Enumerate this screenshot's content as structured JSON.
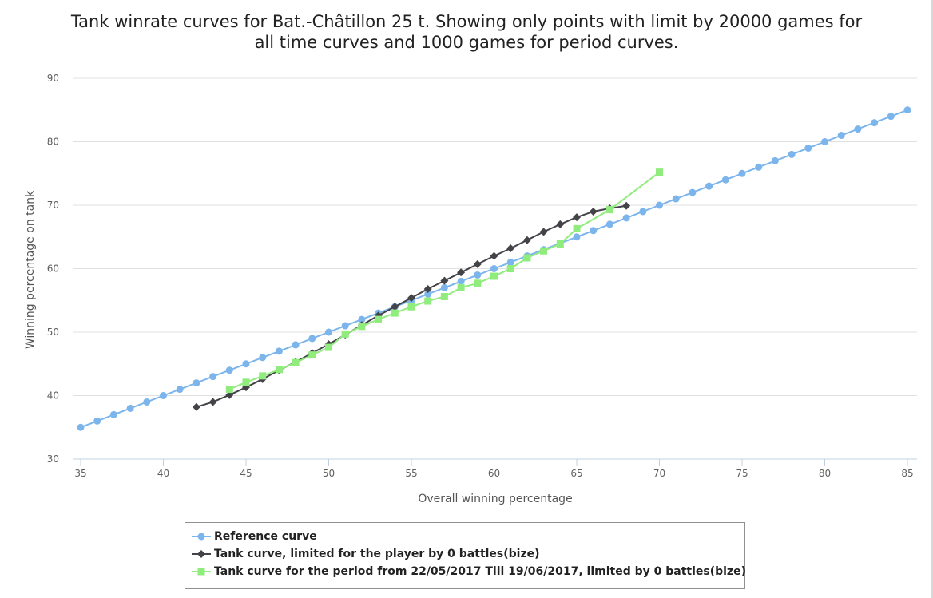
{
  "chart_data": {
    "type": "line",
    "title_line1": "Tank winrate curves for Bat.-Châtillon 25 t. Showing only points with limit by 20000 games for",
    "title_line2": "all time curves and 1000 games for period curves.",
    "xlabel": "Overall winning percentage",
    "ylabel": "Winning percentage on tank",
    "xlim": [
      34,
      86
    ],
    "ylim": [
      30,
      90
    ],
    "xticks": [
      35,
      40,
      45,
      50,
      55,
      60,
      65,
      70,
      75,
      80,
      85
    ],
    "yticks": [
      30,
      40,
      50,
      60,
      70,
      80,
      90
    ],
    "grid": "horizontal",
    "legend_position": "bottom",
    "series": [
      {
        "name": "Reference curve",
        "color": "#7cb5ec",
        "marker": "circle",
        "points": [
          [
            35,
            35
          ],
          [
            36,
            36
          ],
          [
            37,
            37
          ],
          [
            38,
            38
          ],
          [
            39,
            39
          ],
          [
            40,
            40
          ],
          [
            41,
            41
          ],
          [
            42,
            42
          ],
          [
            43,
            43
          ],
          [
            44,
            44
          ],
          [
            45,
            45
          ],
          [
            46,
            46
          ],
          [
            47,
            47
          ],
          [
            48,
            48
          ],
          [
            49,
            49
          ],
          [
            50,
            50
          ],
          [
            51,
            51
          ],
          [
            52,
            52
          ],
          [
            53,
            53
          ],
          [
            54,
            54
          ],
          [
            55,
            55
          ],
          [
            56,
            56
          ],
          [
            57,
            57
          ],
          [
            58,
            58
          ],
          [
            59,
            59
          ],
          [
            60,
            60
          ],
          [
            61,
            61
          ],
          [
            62,
            62
          ],
          [
            63,
            63
          ],
          [
            64,
            64
          ],
          [
            65,
            65
          ],
          [
            66,
            66
          ],
          [
            67,
            67
          ],
          [
            68,
            68
          ],
          [
            69,
            69
          ],
          [
            70,
            70
          ],
          [
            71,
            71
          ],
          [
            72,
            72
          ],
          [
            73,
            73
          ],
          [
            74,
            74
          ],
          [
            75,
            75
          ],
          [
            76,
            76
          ],
          [
            77,
            77
          ],
          [
            78,
            78
          ],
          [
            79,
            79
          ],
          [
            80,
            80
          ],
          [
            81,
            81
          ],
          [
            82,
            82
          ],
          [
            83,
            83
          ],
          [
            84,
            84
          ],
          [
            85,
            85
          ]
        ]
      },
      {
        "name": "Tank curve, limited for the player by 0 battles(bize)",
        "color": "#434348",
        "marker": "diamond",
        "points": [
          [
            42,
            38.2
          ],
          [
            43,
            39
          ],
          [
            44,
            40.1
          ],
          [
            45,
            41.3
          ],
          [
            46,
            42.6
          ],
          [
            47,
            44
          ],
          [
            48,
            45.3
          ],
          [
            49,
            46.7
          ],
          [
            50,
            48.1
          ],
          [
            51,
            49.6
          ],
          [
            52,
            51.1
          ],
          [
            53,
            52.6
          ],
          [
            54,
            54
          ],
          [
            55,
            55.4
          ],
          [
            56,
            56.8
          ],
          [
            57,
            58.1
          ],
          [
            58,
            59.4
          ],
          [
            59,
            60.7
          ],
          [
            60,
            62
          ],
          [
            61,
            63.2
          ],
          [
            62,
            64.5
          ],
          [
            63,
            65.8
          ],
          [
            64,
            67
          ],
          [
            65,
            68.1
          ],
          [
            66,
            69
          ],
          [
            67,
            69.5
          ],
          [
            68,
            69.9
          ]
        ]
      },
      {
        "name": "Tank curve for the period from 22/05/2017 Till 19/06/2017, limited by 0 battles(bize)",
        "color": "#90ed7d",
        "marker": "square",
        "points": [
          [
            44,
            41
          ],
          [
            45,
            42.1
          ],
          [
            46,
            43.1
          ],
          [
            47,
            44.1
          ],
          [
            48,
            45.2
          ],
          [
            49,
            46.4
          ],
          [
            50,
            47.6
          ],
          [
            51,
            49.7
          ],
          [
            52,
            50.9
          ],
          [
            53,
            52
          ],
          [
            54,
            53
          ],
          [
            55,
            54
          ],
          [
            56,
            54.9
          ],
          [
            57,
            55.6
          ],
          [
            58,
            57
          ],
          [
            59,
            57.7
          ],
          [
            60,
            58.8
          ],
          [
            61,
            60
          ],
          [
            62,
            61.7
          ],
          [
            63,
            62.8
          ],
          [
            64,
            63.9
          ],
          [
            65,
            66.3
          ],
          [
            67,
            69.3
          ],
          [
            70,
            75.2
          ]
        ]
      }
    ]
  }
}
